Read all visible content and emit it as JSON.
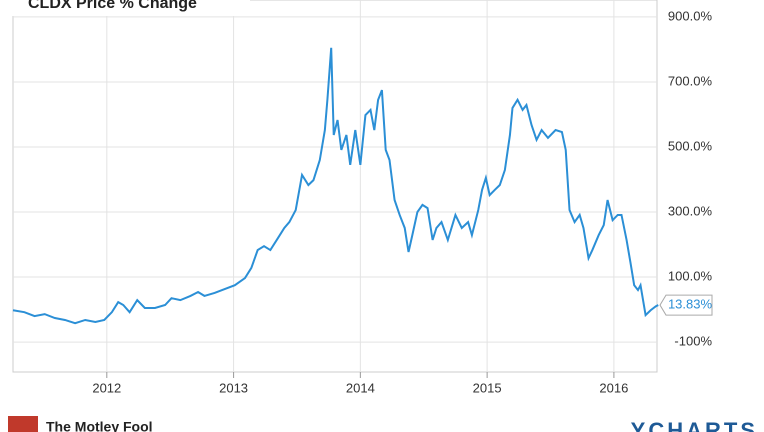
{
  "chart_data": {
    "type": "line",
    "title": "CLDX Price % Change",
    "x": [
      2011.26,
      2011.35,
      2011.43,
      2011.51,
      2011.59,
      2011.67,
      2011.75,
      2011.83,
      2011.91,
      2011.98,
      2012.04,
      2012.09,
      2012.13,
      2012.18,
      2012.24,
      2012.3,
      2012.38,
      2012.46,
      2012.51,
      2012.58,
      2012.66,
      2012.72,
      2012.77,
      2012.85,
      2012.93,
      2013.01,
      2013.09,
      2013.14,
      2013.19,
      2013.24,
      2013.29,
      2013.35,
      2013.4,
      2013.44,
      2013.49,
      2013.54,
      2013.59,
      2013.63,
      2013.68,
      2013.72,
      2013.74,
      2013.77,
      2013.79,
      2013.82,
      2013.85,
      2013.89,
      2013.92,
      2013.96,
      2014.0,
      2014.04,
      2014.08,
      2014.11,
      2014.14,
      2014.17,
      2014.2,
      2014.23,
      2014.27,
      2014.31,
      2014.35,
      2014.38,
      2014.41,
      2014.45,
      2014.49,
      2014.53,
      2014.57,
      2014.6,
      2014.64,
      2014.69,
      2014.75,
      2014.8,
      2014.85,
      2014.88,
      2014.93,
      2014.96,
      2014.99,
      2015.02,
      2015.06,
      2015.1,
      2015.14,
      2015.18,
      2015.2,
      2015.24,
      2015.28,
      2015.31,
      2015.35,
      2015.39,
      2015.43,
      2015.48,
      2015.54,
      2015.59,
      2015.62,
      2015.65,
      2015.69,
      2015.73,
      2015.76,
      2015.8,
      2015.83,
      2015.88,
      2015.92,
      2015.95,
      2015.99,
      2016.03,
      2016.06,
      2016.1,
      2016.13,
      2016.16,
      2016.19,
      2016.21,
      2016.25,
      2016.29,
      2016.33,
      2016.35
    ],
    "series": [
      {
        "name": "CLDX",
        "color": "#2b8fd6",
        "values": [
          -2,
          -8,
          -20,
          -14,
          -26,
          -32,
          -42,
          -32,
          -38,
          -32,
          -8,
          23,
          14,
          -8,
          29,
          5,
          5,
          14,
          35,
          29,
          42,
          54,
          42,
          51,
          63,
          75,
          97,
          128,
          183,
          195,
          183,
          220,
          251,
          269,
          306,
          414,
          383,
          398,
          460,
          552,
          645,
          805,
          537,
          583,
          491,
          537,
          445,
          552,
          445,
          598,
          614,
          552,
          645,
          675,
          491,
          460,
          337,
          291,
          251,
          177,
          229,
          300,
          322,
          312,
          214,
          251,
          269,
          214,
          291,
          251,
          269,
          229,
          306,
          368,
          405,
          352,
          368,
          383,
          429,
          537,
          620,
          645,
          614,
          629,
          568,
          522,
          552,
          528,
          552,
          546,
          491,
          306,
          269,
          291,
          251,
          158,
          183,
          229,
          260,
          337,
          275,
          291,
          291,
          214,
          146,
          75,
          60,
          75,
          -17,
          -2,
          10,
          13.83
        ],
        "value_labels": [
          null,
          null,
          null,
          null,
          null,
          null,
          null,
          null,
          null,
          null,
          null,
          null,
          null,
          null,
          null,
          null,
          null,
          null,
          null,
          null,
          null,
          null,
          null,
          null,
          null,
          null,
          null,
          null,
          null,
          null,
          null,
          null,
          null,
          null,
          null,
          null,
          null,
          null,
          null,
          null,
          null,
          null,
          null,
          null,
          null,
          null,
          null,
          null,
          null,
          null,
          null,
          null,
          null,
          null,
          null,
          null,
          null,
          null,
          null,
          null,
          null,
          null,
          null,
          null,
          null,
          null,
          null,
          null,
          null,
          null,
          null,
          null,
          null,
          null,
          null,
          null,
          null,
          null,
          null,
          null,
          null,
          null,
          null,
          null,
          null,
          null,
          null,
          null,
          null,
          null,
          null,
          null,
          null,
          null,
          null,
          null,
          null,
          null,
          null,
          null,
          null,
          null,
          null,
          null,
          null,
          null,
          null,
          null,
          null,
          null,
          null,
          "13.83%"
        ]
      }
    ],
    "xlim": [
      2011.26,
      2016.34
    ],
    "xticks": [
      2012,
      2013,
      2014,
      2015,
      2016
    ],
    "ylim": [
      -192,
      952
    ],
    "yticks": [
      {
        "value": -100,
        "label": "-100%"
      },
      {
        "value": 100,
        "label": "100.0%"
      },
      {
        "value": 300,
        "label": "300.0%"
      },
      {
        "value": 500,
        "label": "500.0%"
      },
      {
        "value": 700,
        "label": "700.0%"
      },
      {
        "value": 900,
        "label": "900.0%"
      }
    ],
    "grid": true,
    "footer_left": "The Motley Fool",
    "footer_right": "YCHARTS"
  }
}
